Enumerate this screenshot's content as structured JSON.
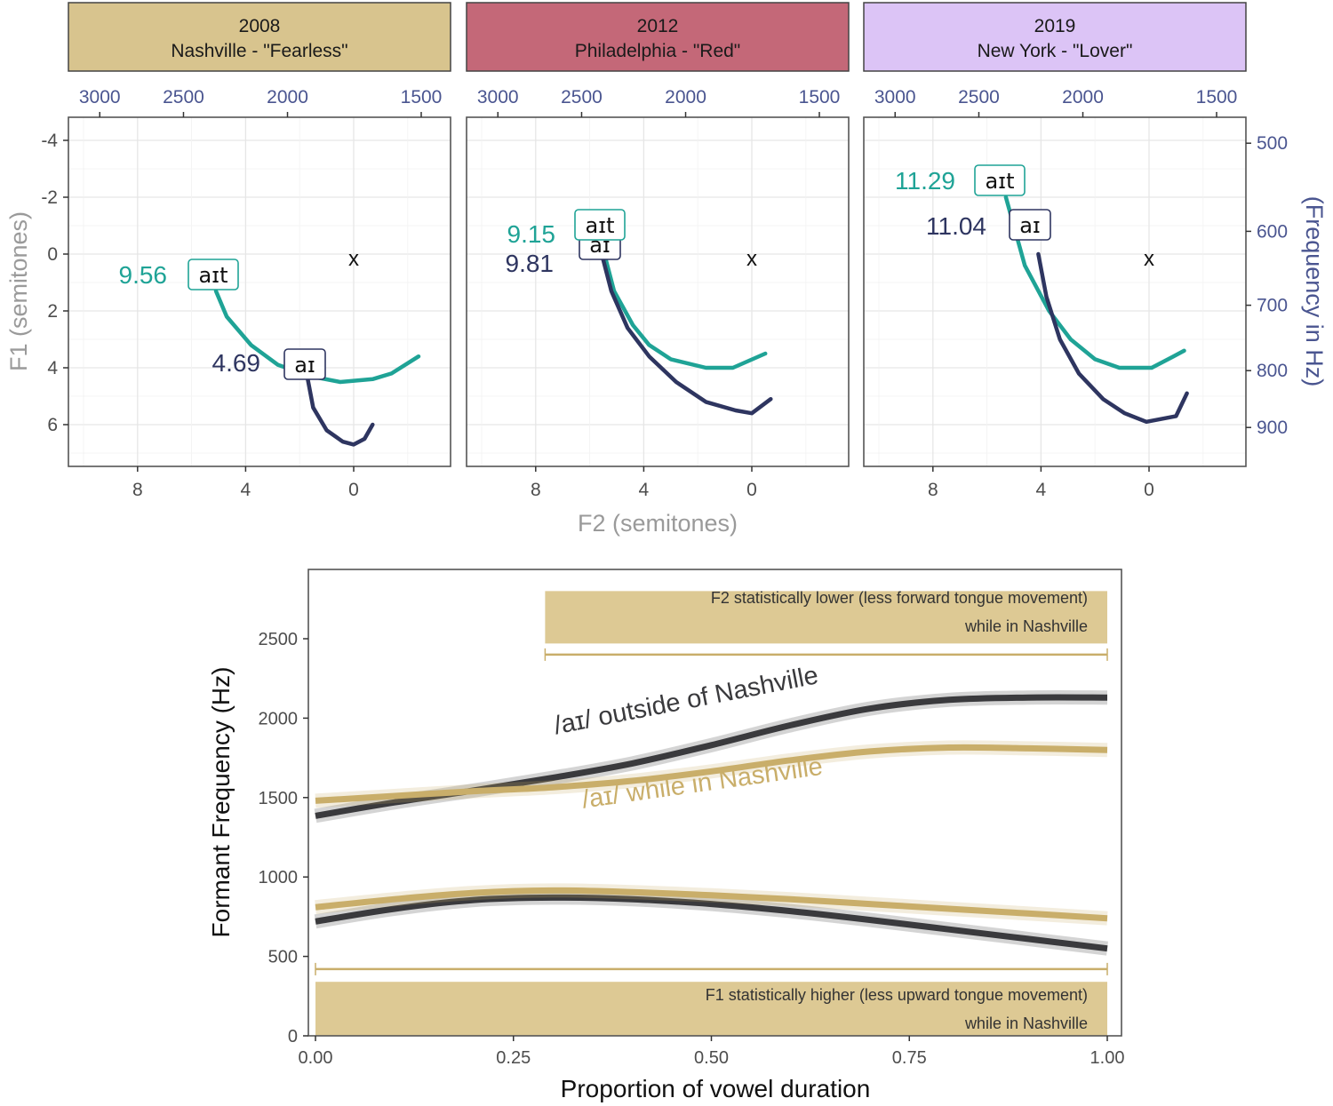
{
  "colors": {
    "teal": "#1fa396",
    "navy": "#2e3560",
    "gold": "#c9ae6a",
    "gold_fill": "#ddc994",
    "dark_line": "#3a3a3d",
    "strip_2008": "#d8c48e",
    "strip_2012": "#c46878",
    "strip_2019": "#dcc4f6",
    "hz_axis": "#4a5590"
  },
  "chart_data": [
    {
      "type": "line",
      "subtype": "faceted vowel trajectory plot",
      "xlabel": "F2 (semitones)",
      "ylabel": "F1 (semitones)",
      "secondary_ylabel": "(Frequency in Hz)",
      "x_reversed": true,
      "y_reversed": true,
      "xlim": [
        10,
        -3.8
      ],
      "ylim": [
        -4.8,
        7.5
      ],
      "x_ticks": [
        "8",
        "4",
        "0"
      ],
      "x_tick_values": [
        8,
        4,
        0
      ],
      "y_ticks": [
        "-4",
        "-2",
        "0",
        "2",
        "4",
        "6"
      ],
      "y_tick_values": [
        -4,
        -2,
        0,
        2,
        4,
        6
      ],
      "top_axis_hz_ticks": [
        "3000",
        "2500",
        "2000",
        "1500"
      ],
      "top_axis_hz_semitone_positions": [
        9.4,
        6.3,
        2.45,
        -2.5
      ],
      "right_axis_hz_ticks": [
        "500",
        "600",
        "700",
        "800",
        "900"
      ],
      "right_axis_hz_semitone_positions": [
        -3.9,
        -0.8,
        1.8,
        4.1,
        6.1
      ],
      "reference_marker": {
        "label": "x",
        "x": 0,
        "y": 0.1
      },
      "grid": true,
      "panels": [
        {
          "strip_line1": "2008",
          "strip_line2": "Nashville - \"Fearless\"",
          "strip_color_key": "strip_2008",
          "series": [
            {
              "name": "aɪt",
              "color_key": "teal",
              "value_label": "9.56",
              "points": [
                [
                  5.1,
                  1.3
                ],
                [
                  4.7,
                  2.2
                ],
                [
                  3.8,
                  3.2
                ],
                [
                  2.8,
                  3.9
                ],
                [
                  1.6,
                  4.3
                ],
                [
                  0.5,
                  4.5
                ],
                [
                  -0.7,
                  4.4
                ],
                [
                  -1.4,
                  4.2
                ],
                [
                  -2.4,
                  3.6
                ]
              ]
            },
            {
              "name": "aɪ",
              "color_key": "navy",
              "value_label": "4.69",
              "points": [
                [
                  1.7,
                  4.4
                ],
                [
                  1.5,
                  5.4
                ],
                [
                  1.0,
                  6.2
                ],
                [
                  0.4,
                  6.6
                ],
                [
                  0.0,
                  6.7
                ],
                [
                  -0.4,
                  6.5
                ],
                [
                  -0.7,
                  6.0
                ]
              ]
            }
          ]
        },
        {
          "strip_line1": "2012",
          "strip_line2": "Philadelphia - \"Red\"",
          "strip_color_key": "strip_2012",
          "series": [
            {
              "name": "aɪt",
              "color_key": "teal",
              "value_label": "9.15",
              "points": [
                [
                  5.4,
                  0.2
                ],
                [
                  5.1,
                  1.3
                ],
                [
                  4.4,
                  2.5
                ],
                [
                  3.8,
                  3.2
                ],
                [
                  3.0,
                  3.7
                ],
                [
                  1.7,
                  4.0
                ],
                [
                  0.7,
                  4.0
                ],
                [
                  -0.5,
                  3.5
                ]
              ]
            },
            {
              "name": "aɪ",
              "color_key": "navy",
              "value_label": "9.81",
              "points": [
                [
                  5.5,
                  0.2
                ],
                [
                  5.2,
                  1.3
                ],
                [
                  4.6,
                  2.6
                ],
                [
                  3.8,
                  3.6
                ],
                [
                  2.8,
                  4.5
                ],
                [
                  1.7,
                  5.2
                ],
                [
                  0.6,
                  5.5
                ],
                [
                  0.0,
                  5.6
                ],
                [
                  -0.7,
                  5.1
                ]
              ]
            }
          ]
        },
        {
          "strip_line1": "2019",
          "strip_line2": "New York - \"Lover\"",
          "strip_color_key": "strip_2019",
          "series": [
            {
              "name": "aɪt",
              "color_key": "teal",
              "value_label": "11.29",
              "points": [
                [
                  5.3,
                  -2.0
                ],
                [
                  4.6,
                  0.4
                ],
                [
                  3.7,
                  2.0
                ],
                [
                  2.9,
                  3.0
                ],
                [
                  2.0,
                  3.7
                ],
                [
                  1.1,
                  4.0
                ],
                [
                  -0.1,
                  4.0
                ],
                [
                  -0.9,
                  3.6
                ],
                [
                  -1.3,
                  3.4
                ]
              ]
            },
            {
              "name": "aɪ",
              "color_key": "navy",
              "value_label": "11.04",
              "points": [
                [
                  4.1,
                  0.0
                ],
                [
                  3.8,
                  1.5
                ],
                [
                  3.3,
                  3.0
                ],
                [
                  2.6,
                  4.2
                ],
                [
                  1.7,
                  5.1
                ],
                [
                  0.9,
                  5.6
                ],
                [
                  0.1,
                  5.9
                ],
                [
                  -1.0,
                  5.7
                ],
                [
                  -1.4,
                  4.9
                ]
              ]
            }
          ]
        }
      ]
    },
    {
      "type": "line",
      "subtype": "smoothed formant trajectories with confidence bands",
      "xlabel": "Proportion of vowel duration",
      "ylabel": "Formant Frequency (Hz)",
      "xlim": [
        0,
        1
      ],
      "ylim": [
        0,
        2800
      ],
      "x_ticks": [
        "0.00",
        "0.25",
        "0.50",
        "0.75",
        "1.00"
      ],
      "x_tick_values": [
        0,
        0.25,
        0.5,
        0.75,
        1.0
      ],
      "y_ticks": [
        "0",
        "500",
        "1000",
        "1500",
        "2000",
        "2500"
      ],
      "y_tick_values": [
        0,
        500,
        1000,
        1500,
        2000,
        2500
      ],
      "grid": false,
      "x": [
        0,
        0.1,
        0.2,
        0.3,
        0.4,
        0.5,
        0.6,
        0.7,
        0.8,
        0.9,
        1.0
      ],
      "series": [
        {
          "name": "F2 outside of Nashville",
          "label": "/aɪ/ outside of Nashville",
          "color_key": "dark_line",
          "values": [
            1385,
            1470,
            1545,
            1625,
            1715,
            1830,
            1955,
            2060,
            2115,
            2130,
            2130
          ]
        },
        {
          "name": "F2 while in Nashville",
          "color_key": "gold",
          "values": [
            1480,
            1510,
            1540,
            1565,
            1605,
            1665,
            1735,
            1790,
            1815,
            1810,
            1800
          ]
        },
        {
          "name": "F1 outside of Nashville",
          "color_key": "dark_line",
          "values": [
            720,
            800,
            855,
            870,
            860,
            830,
            785,
            730,
            670,
            610,
            550
          ]
        },
        {
          "name": "F1 while in Nashville",
          "label": "/aɪ/ while in Nashville",
          "color_key": "gold",
          "values": [
            810,
            860,
            900,
            915,
            905,
            885,
            860,
            830,
            800,
            770,
            740
          ]
        }
      ],
      "annotations": [
        {
          "name": "f2-significance",
          "line1": "F2 statistically lower (less forward tongue movement)",
          "line2": "while in Nashville",
          "x_range": [
            0.29,
            1.0
          ],
          "band_hz": [
            2470,
            2800
          ],
          "bracket_hz": 2400
        },
        {
          "name": "f1-significance",
          "line1": "F1 statistically higher (less upward tongue movement)",
          "line2": "while in Nashville",
          "x_range": [
            0.0,
            1.0
          ],
          "band_hz": [
            0,
            340
          ],
          "bracket_hz": 420
        }
      ],
      "curve_labels": [
        {
          "text": "/aɪ/ outside of Nashville",
          "color_key": "dark_line",
          "x": 0.47,
          "y": 2060
        },
        {
          "text": "/aɪ/ while in Nashville",
          "color_key": "gold",
          "x": 0.49,
          "y": 1540
        }
      ]
    }
  ]
}
